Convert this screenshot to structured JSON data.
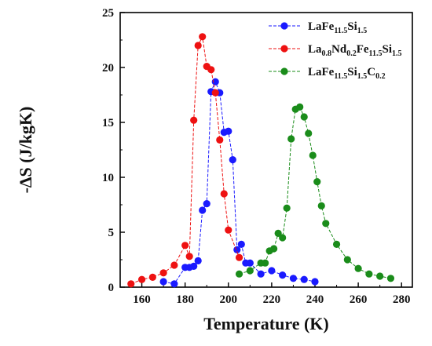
{
  "chart_data": {
    "type": "line",
    "xlabel": "Temperature (K)",
    "ylabel": "-∆S (J/kgK)",
    "xlim": [
      150,
      285
    ],
    "ylim": [
      0,
      25
    ],
    "xticks": [
      160,
      180,
      200,
      220,
      240,
      260,
      280
    ],
    "yticks": [
      0,
      5,
      10,
      15,
      20,
      25
    ],
    "grid": false,
    "legend_position": "top-right",
    "series": [
      {
        "name": "LaFe11.5Si1.5",
        "name_parts": [
          {
            "t": "LaFe",
            "sub": false
          },
          {
            "t": "11.5",
            "sub": true
          },
          {
            "t": "Si",
            "sub": false
          },
          {
            "t": "1.5",
            "sub": true
          }
        ],
        "color": "#1a1aff",
        "x": [
          170,
          175,
          180,
          182,
          184,
          186,
          188,
          190,
          192,
          194,
          196,
          198,
          200,
          202,
          204,
          206,
          208,
          210,
          215,
          220,
          225,
          230,
          235,
          240
        ],
        "y": [
          0.5,
          0.3,
          1.8,
          1.8,
          1.9,
          2.4,
          7.0,
          7.6,
          17.8,
          18.7,
          17.7,
          14.1,
          14.2,
          11.6,
          3.4,
          3.9,
          2.2,
          2.2,
          1.2,
          1.5,
          1.1,
          0.8,
          0.7,
          0.5
        ]
      },
      {
        "name": "La0.8Nd0.2Fe11.5Si1.5",
        "name_parts": [
          {
            "t": "La",
            "sub": false
          },
          {
            "t": "0.8",
            "sub": true
          },
          {
            "t": "Nd",
            "sub": false
          },
          {
            "t": "0.2",
            "sub": true
          },
          {
            "t": "Fe",
            "sub": false
          },
          {
            "t": "11.5",
            "sub": true
          },
          {
            "t": "Si",
            "sub": false
          },
          {
            "t": "1.5",
            "sub": true
          }
        ],
        "color": "#ee1111",
        "x": [
          155,
          160,
          165,
          170,
          175,
          180,
          182,
          184,
          186,
          188,
          190,
          192,
          194,
          196,
          198,
          200,
          205
        ],
        "y": [
          0.3,
          0.7,
          0.9,
          1.3,
          2.0,
          3.8,
          2.8,
          15.2,
          22.0,
          22.8,
          20.1,
          19.8,
          17.7,
          13.4,
          8.5,
          5.2,
          2.7
        ]
      },
      {
        "name": "LaFe11.5Si1.5C0.2",
        "name_parts": [
          {
            "t": "LaFe",
            "sub": false
          },
          {
            "t": "11.5",
            "sub": true
          },
          {
            "t": "Si",
            "sub": false
          },
          {
            "t": "1.5",
            "sub": true
          },
          {
            "t": "C",
            "sub": false
          },
          {
            "t": "0.2",
            "sub": true
          }
        ],
        "color": "#1a8c1a",
        "x": [
          205,
          210,
          215,
          217,
          219,
          221,
          223,
          225,
          227,
          229,
          231,
          233,
          235,
          237,
          239,
          241,
          243,
          245,
          250,
          255,
          260,
          265,
          270,
          275
        ],
        "y": [
          1.2,
          1.5,
          2.2,
          2.2,
          3.3,
          3.5,
          4.9,
          4.5,
          7.2,
          13.5,
          16.2,
          16.4,
          15.5,
          14.0,
          12.0,
          9.6,
          7.4,
          5.8,
          3.9,
          2.5,
          1.7,
          1.2,
          1.0,
          0.8
        ]
      }
    ]
  }
}
